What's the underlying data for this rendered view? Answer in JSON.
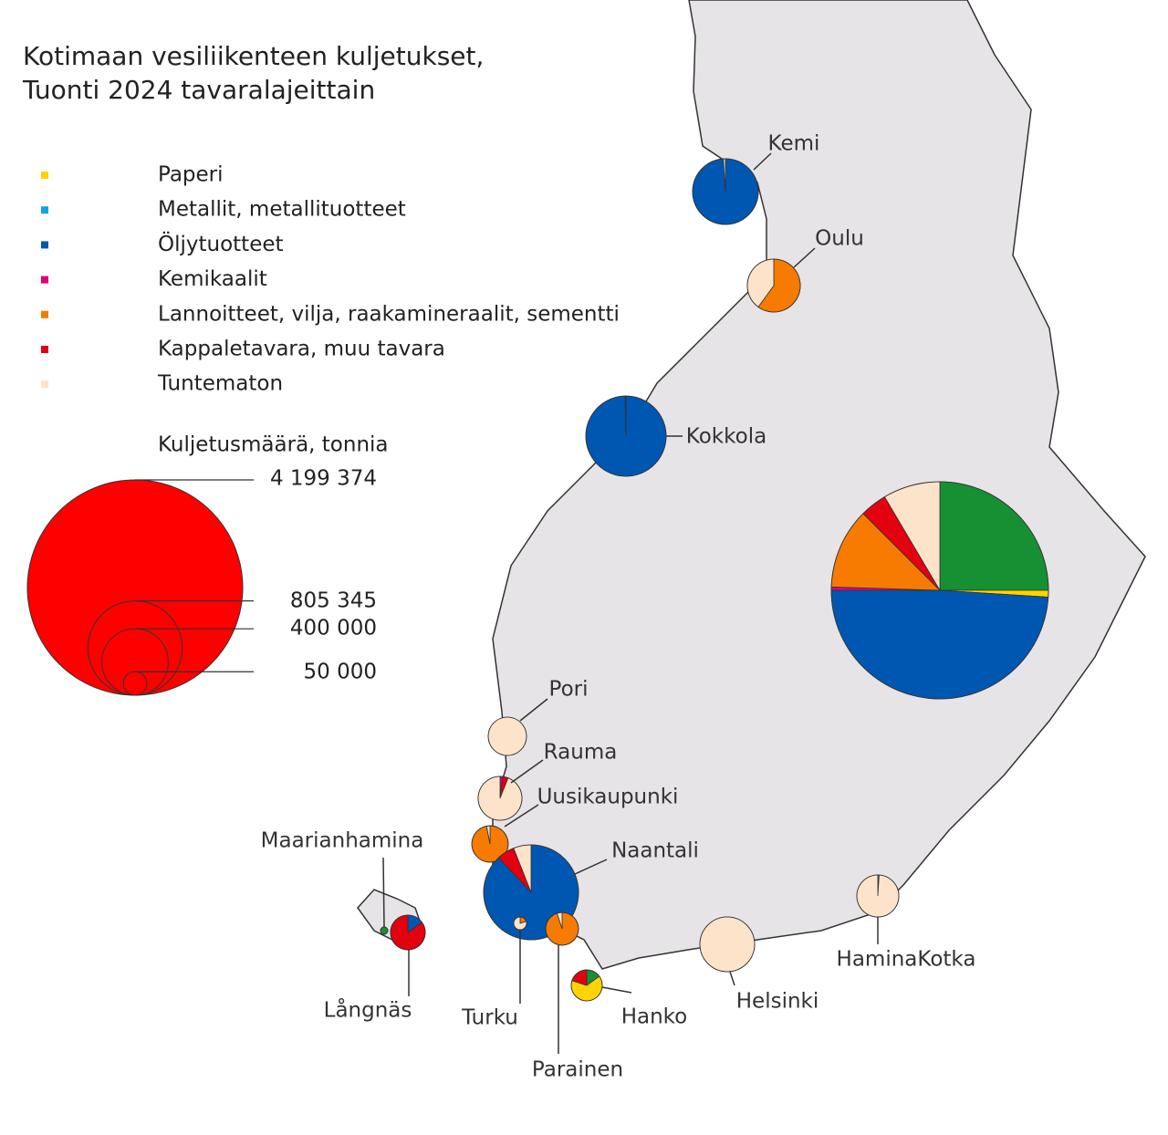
{
  "title": [
    "Kotimaan vesiliikenteen kuljetukset,",
    "Tuonti 2024 tavaralajeittain"
  ],
  "categories": [
    {
      "name": null,
      "color": "#178f33"
    },
    {
      "name": "Paperi",
      "color": "#ffd400"
    },
    {
      "name": "Metallit, metallituotteet",
      "color": "#12a2e8"
    },
    {
      "name": "Öljytuotteet",
      "color": "#0057b2"
    },
    {
      "name": "Kemikaalit",
      "color": "#e0007a"
    },
    {
      "name": "Lannoitteet, vilja, raakamineraalit, sementti",
      "color": "#f67b00"
    },
    {
      "name": "Kappaletavara, muu tavara",
      "color": "#e3000f"
    },
    {
      "name": "Tuntematon",
      "color": "#fde3c9"
    }
  ],
  "size_legend": {
    "title": "Kuljetusmäärä, tonnia",
    "color": "#ff0000",
    "values": [
      {
        "value": 4199374,
        "label": "4 199 374"
      },
      {
        "value": 805345,
        "label": "805 345"
      },
      {
        "value": 400000,
        "label": "400 000"
      },
      {
        "value": 50000,
        "label": "50 000"
      }
    ]
  },
  "ports": [
    {
      "name": "Kemi",
      "total": 391000,
      "shares": [
        0,
        0,
        0,
        99,
        0,
        0,
        0,
        1
      ]
    },
    {
      "name": "Oulu",
      "total": 254000,
      "shares": [
        0,
        0,
        0,
        0,
        0,
        60,
        0,
        40
      ]
    },
    {
      "name": "Kokkola",
      "total": 584000,
      "shares": [
        0,
        0,
        0,
        99.7,
        0,
        0,
        0,
        0.3
      ]
    },
    {
      "name": null,
      "total": 4270000,
      "shares": [
        25,
        1,
        0,
        49,
        0.5,
        12,
        4,
        8.5
      ]
    },
    {
      "name": "Pori",
      "total": 133000,
      "shares": [
        0,
        0,
        0,
        0,
        0,
        0,
        0,
        100
      ]
    },
    {
      "name": "Rauma",
      "total": 174000,
      "shares": [
        0,
        0,
        0,
        0,
        2,
        0,
        4,
        94
      ]
    },
    {
      "name": "Uusikaupunki",
      "total": 120000,
      "shares": [
        0,
        0,
        0,
        0,
        0,
        97,
        0,
        3
      ]
    },
    {
      "name": "Naantali",
      "total": 815000,
      "shares": [
        0,
        0,
        0,
        88,
        0,
        0,
        6,
        6
      ]
    },
    {
      "name": "Turku",
      "total": 15000,
      "shares": [
        0,
        0,
        0,
        0,
        0,
        20,
        0,
        80
      ]
    },
    {
      "name": "Parainen",
      "total": 97000,
      "shares": [
        0,
        0,
        0,
        0,
        0,
        95,
        0,
        5
      ]
    },
    {
      "name": "Långnäs",
      "total": 109000,
      "shares": [
        0,
        0,
        0,
        15,
        0,
        0,
        85,
        0
      ]
    },
    {
      "name": "Maarianhamina",
      "total": 5000,
      "shares": [
        100,
        0,
        0,
        0,
        0,
        0,
        0,
        0
      ]
    },
    {
      "name": "Hanko",
      "total": 87000,
      "shares": [
        15,
        65,
        0,
        0,
        0,
        0,
        20,
        0
      ]
    },
    {
      "name": "Helsinki",
      "total": 271000,
      "shares": [
        0,
        0,
        0,
        0,
        0,
        0,
        0,
        100
      ]
    },
    {
      "name": "HaminaKotka",
      "total": 160000,
      "shares": [
        0,
        0,
        0,
        1,
        0,
        0,
        0,
        99
      ]
    }
  ]
}
